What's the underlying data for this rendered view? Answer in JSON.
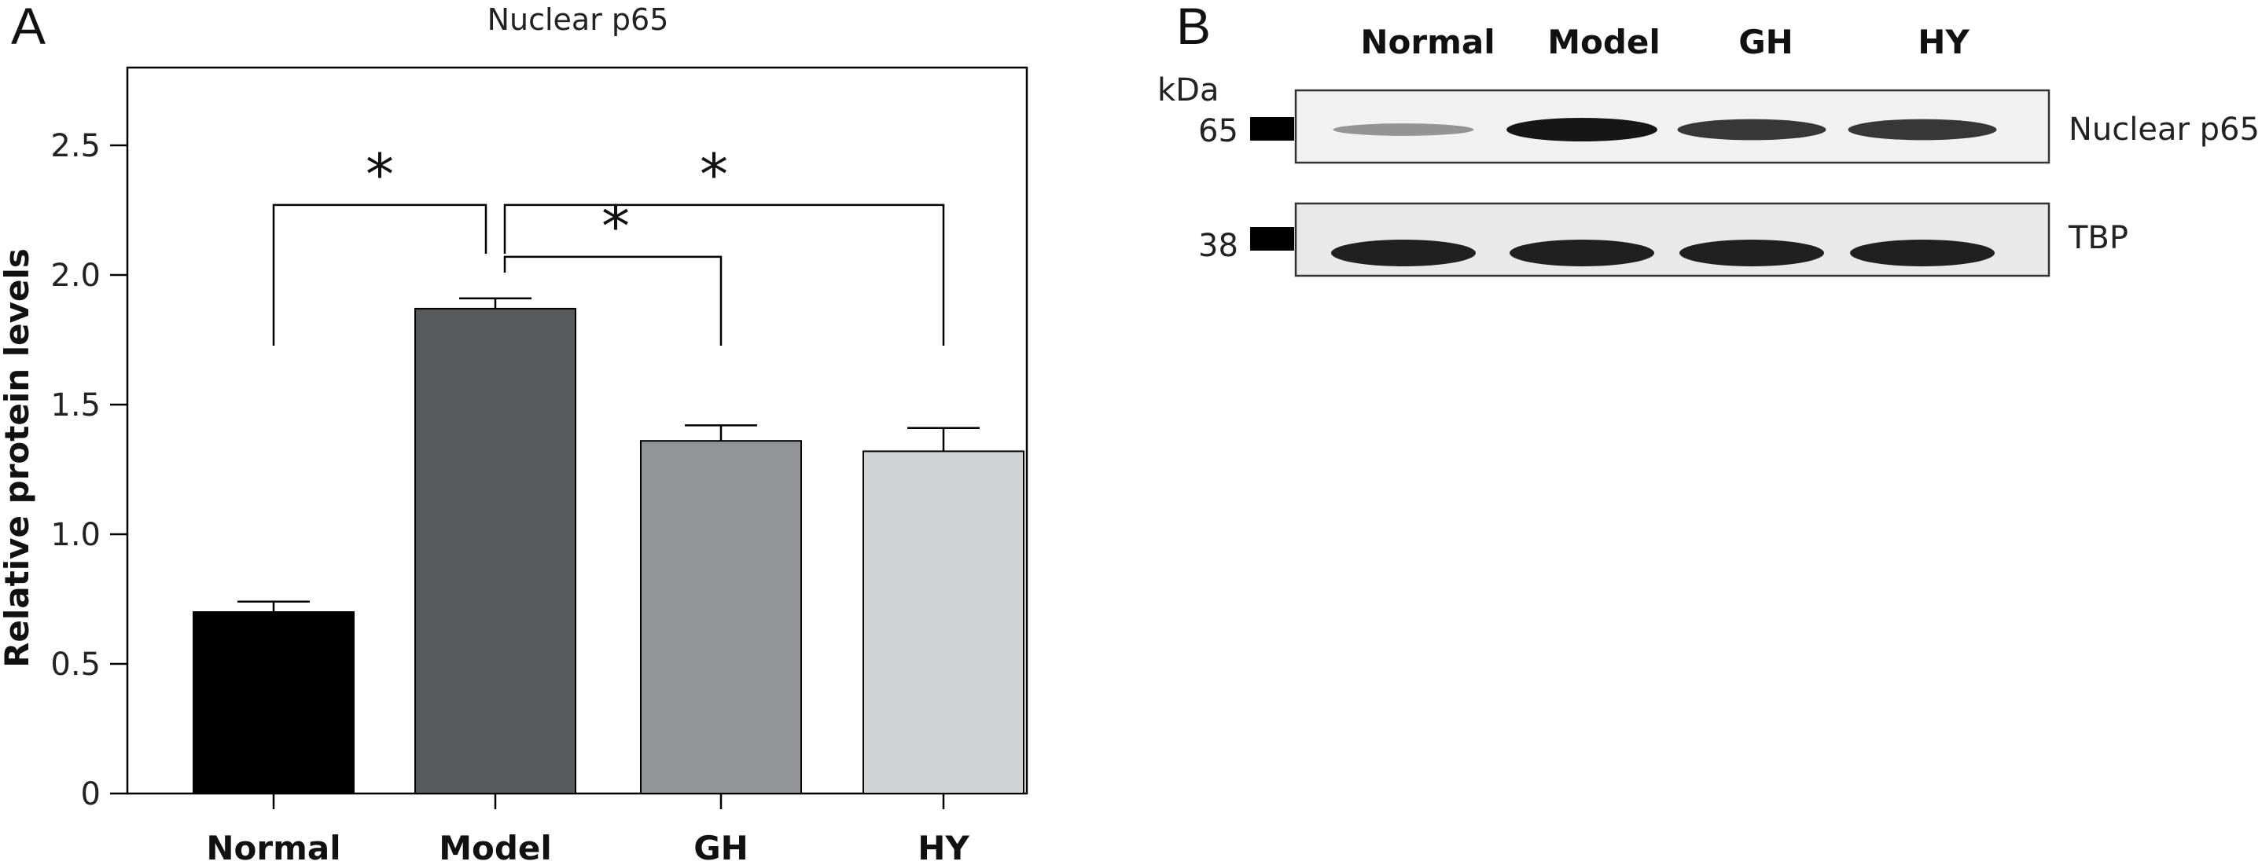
{
  "chart_data": [
    {
      "type": "bar",
      "panel": "A",
      "title": "Nuclear p65",
      "ylabel": "Relative protein levels",
      "xlabel": "",
      "ylim": [
        0,
        2.8
      ],
      "yticks": [
        "0",
        "0.5",
        "1.0",
        "1.5",
        "2.0",
        "2.5"
      ],
      "ytick_values": [
        0,
        0.5,
        1.0,
        1.5,
        2.0,
        2.5
      ],
      "categories": [
        "Normal",
        "Model",
        "GH",
        "HY"
      ],
      "values": [
        0.7,
        1.87,
        1.36,
        1.32
      ],
      "errors": [
        0.04,
        0.04,
        0.06,
        0.09
      ],
      "colors": [
        "#000000",
        "#58595b",
        "#939598",
        "#d1d3d4"
      ],
      "grid": false,
      "significance": [
        {
          "from": 0,
          "to": 1,
          "label": "*",
          "level": 2.27
        },
        {
          "from": 1,
          "to": 3,
          "label": "*",
          "level": 2.27
        },
        {
          "from": 1,
          "to": 2,
          "label": "*",
          "level": 2.07
        }
      ]
    },
    {
      "type": "western-blot",
      "panel": "B",
      "lanes": [
        "Normal",
        "Model",
        "GH",
        "HY"
      ],
      "unit_label": "kDa",
      "blots": [
        {
          "name": "Nuclear p65",
          "marker": "65",
          "intensity": [
            0.35,
            1.0,
            0.85,
            0.85
          ]
        },
        {
          "name": "TBP",
          "marker": "38",
          "intensity": [
            1.0,
            1.0,
            1.0,
            1.0
          ]
        }
      ]
    }
  ]
}
